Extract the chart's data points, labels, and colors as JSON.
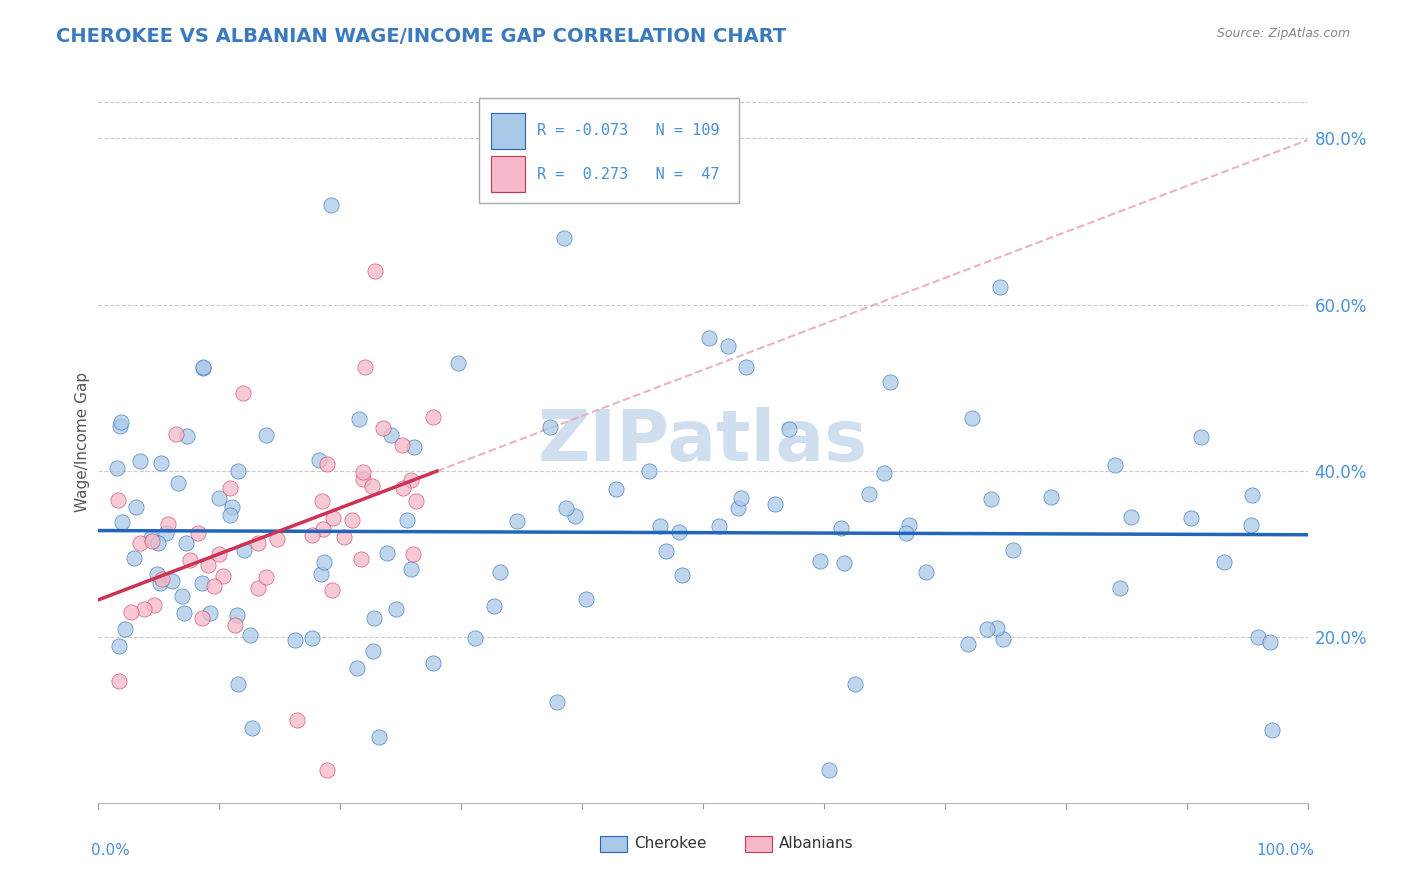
{
  "title": "CHEROKEE VS ALBANIAN WAGE/INCOME GAP CORRELATION CHART",
  "source_text": "Source: ZipAtlas.com",
  "ylabel": "Wage/Income Gap",
  "xlim": [
    0.0,
    1.0
  ],
  "ylim": [
    0.0,
    0.87
  ],
  "legend_R_cherokee": "-0.073",
  "legend_N_cherokee": "109",
  "legend_R_albanian": "0.273",
  "legend_N_albanian": "47",
  "cherokee_color": "#aac9e8",
  "albanian_color": "#f5b8c8",
  "cherokee_line_color": "#2266bb",
  "albanian_line_color": "#cc3355",
  "albanian_dash_color": "#e8a0b0",
  "watermark_color": "#d0dff0",
  "background_color": "#ffffff",
  "grid_color": "#cccccc",
  "title_color": "#3a7bbf",
  "axis_label_color": "#4a90d9",
  "ytick_values": [
    0.2,
    0.4,
    0.6,
    0.8
  ],
  "ytick_labels": [
    "20.0%",
    "40.0%",
    "60.0%",
    "80.0%"
  ]
}
